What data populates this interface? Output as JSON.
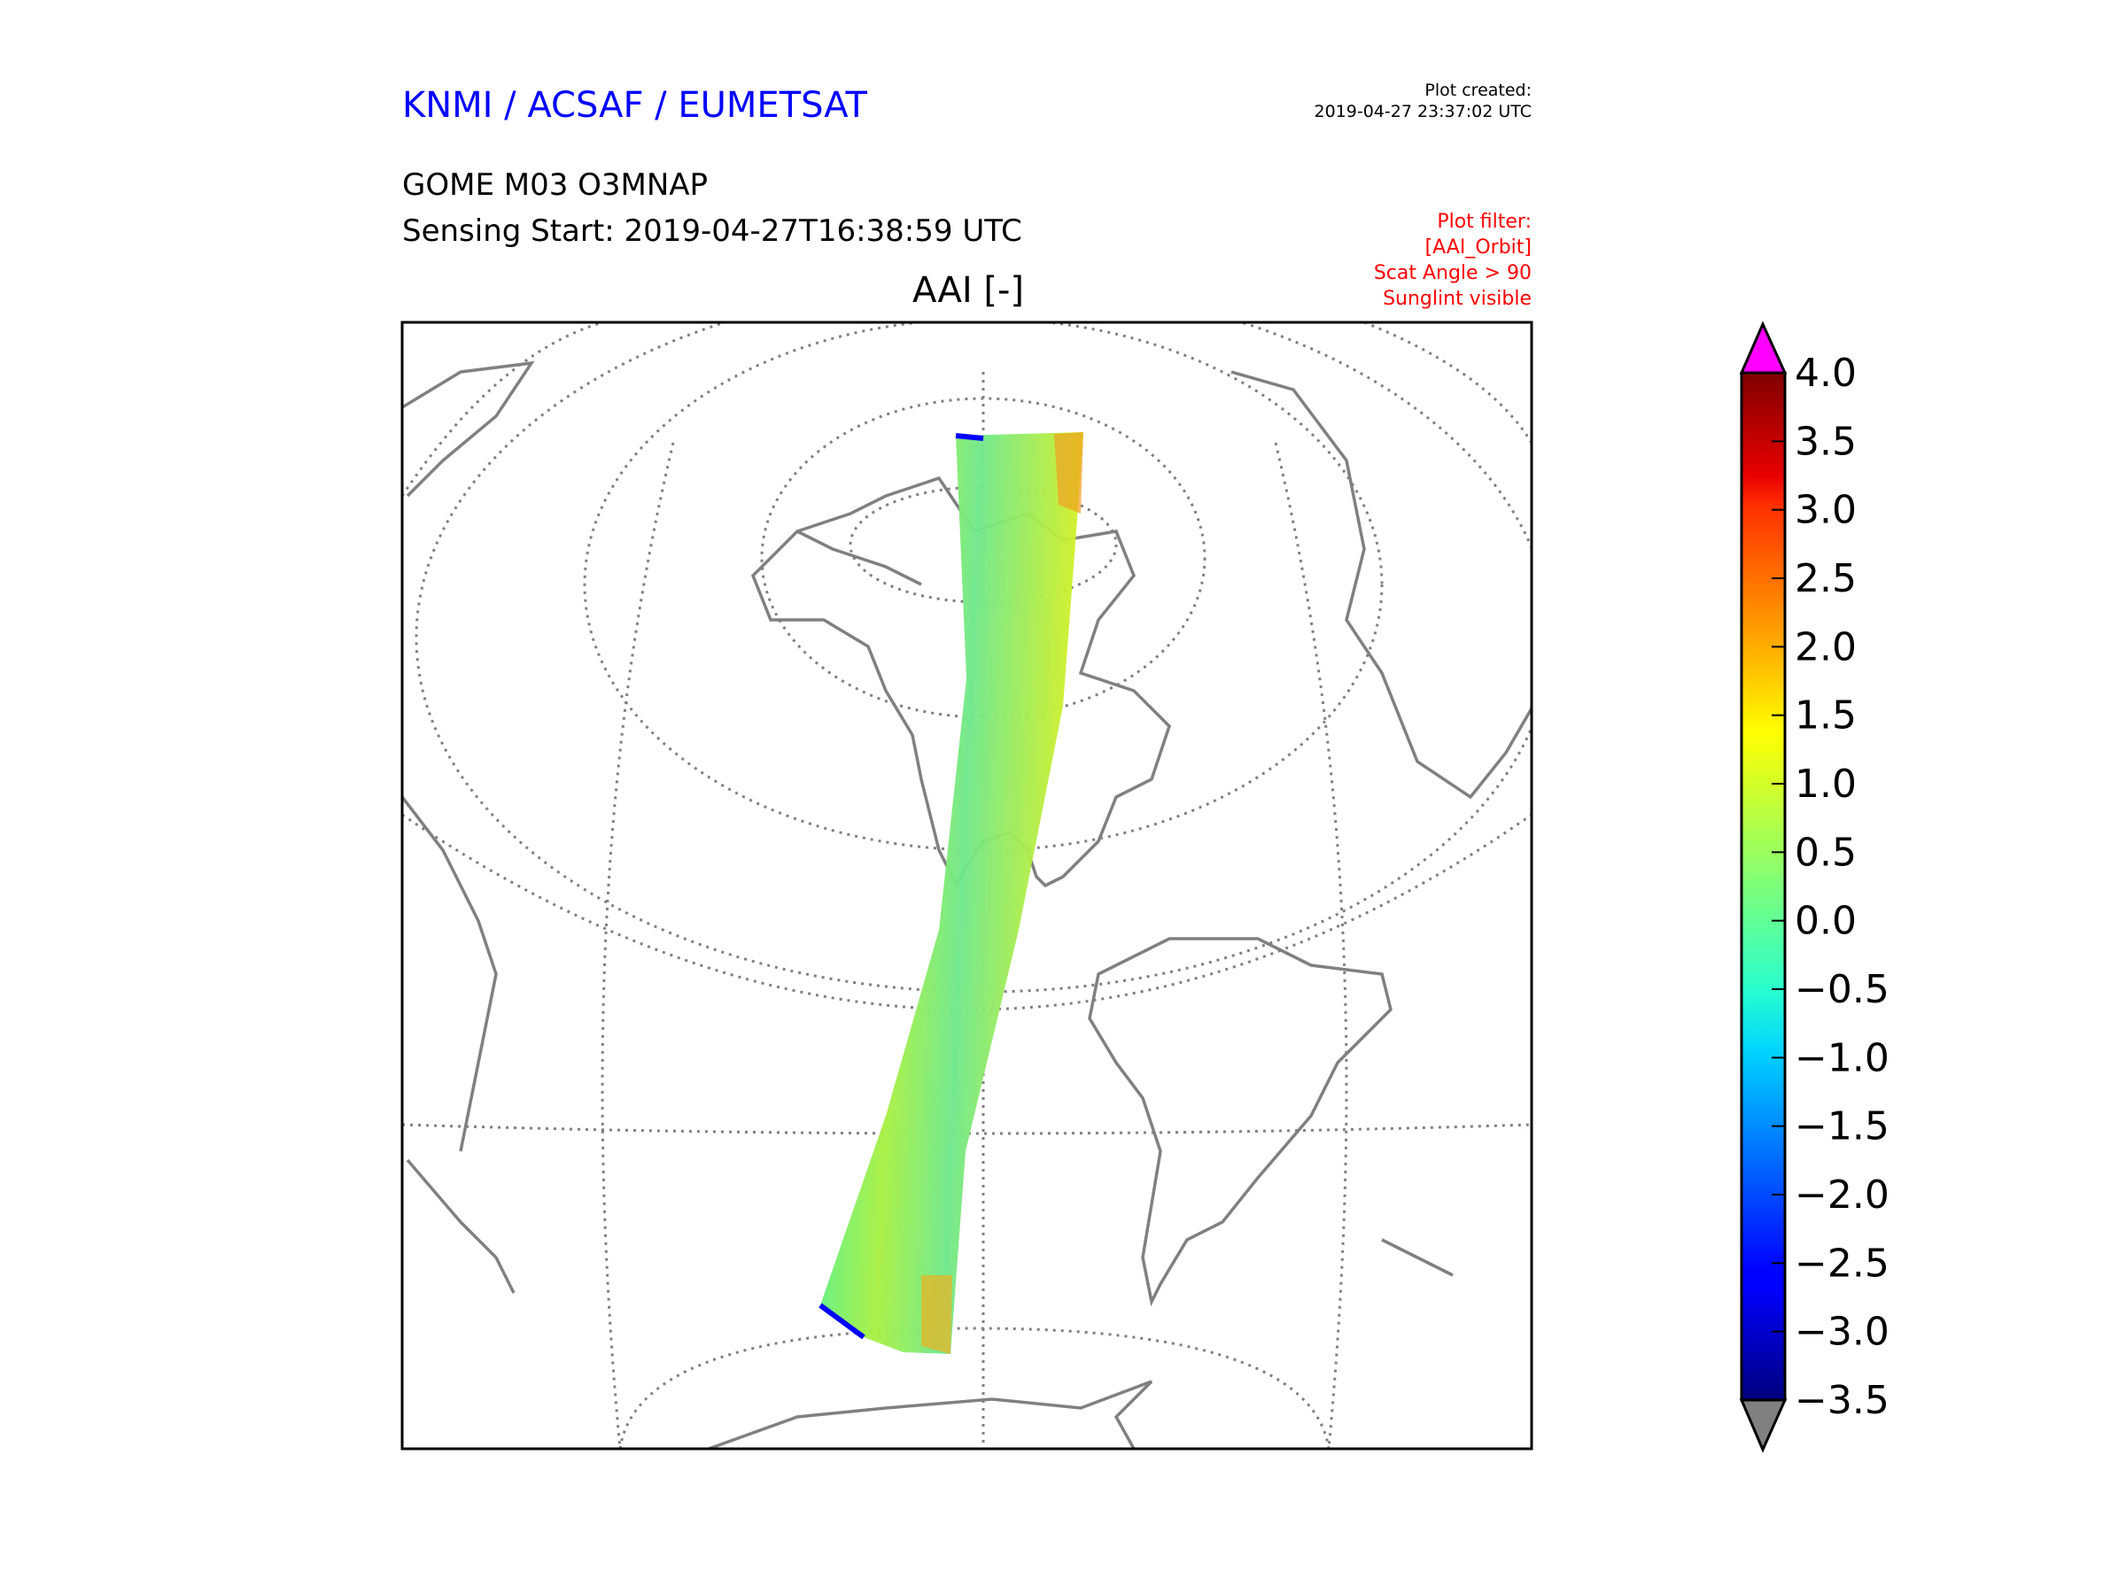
{
  "header": {
    "brand": "KNMI / ACSAF / EUMETSAT",
    "product": "GOME M03 O3MNAP",
    "sensing_start": "Sensing Start: 2019-04-27T16:38:59 UTC",
    "plot_created_label": "Plot created:",
    "plot_created_time": "2019-04-27 23:37:02 UTC",
    "filter_lines": [
      "Plot filter:",
      "[AAI_Orbit]",
      "Scat Angle > 90",
      "Sunglint visible"
    ]
  },
  "colors": {
    "brand": "#0000ff",
    "filter": "#ff0000",
    "coast": "#808080",
    "over": "#ff00ff",
    "under": "#808080"
  },
  "chart_data": {
    "type": "heatmap",
    "title": "AAI [-]",
    "projection": "orthographic map, Americas",
    "colorbar": {
      "vmin": -3.5,
      "vmax": 4.0,
      "ticks": [
        4.0,
        3.5,
        3.0,
        2.5,
        2.0,
        1.5,
        1.0,
        0.5,
        0.0,
        -0.5,
        -1.0,
        -1.5,
        -2.0,
        -2.5,
        -3.0,
        -3.5
      ],
      "tick_labels": [
        "4.0",
        "3.5",
        "3.0",
        "2.5",
        "2.0",
        "1.5",
        "1.0",
        "0.5",
        "0.0",
        "−0.5",
        "−1.0",
        "−1.5",
        "−2.0",
        "−2.5",
        "−3.0",
        "−3.5"
      ],
      "extend": "both",
      "colormap": "jet"
    }
  }
}
